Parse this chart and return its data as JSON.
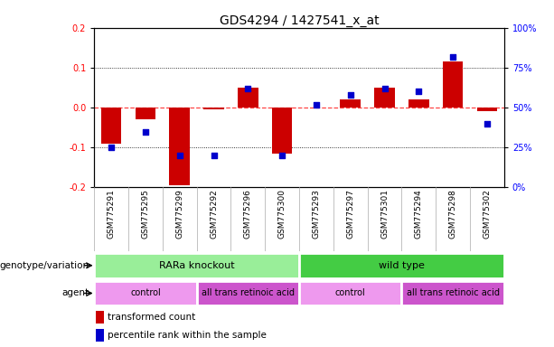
{
  "title": "GDS4294 / 1427541_x_at",
  "samples": [
    "GSM775291",
    "GSM775295",
    "GSM775299",
    "GSM775292",
    "GSM775296",
    "GSM775300",
    "GSM775293",
    "GSM775297",
    "GSM775301",
    "GSM775294",
    "GSM775298",
    "GSM775302"
  ],
  "bar_values": [
    -0.09,
    -0.03,
    -0.195,
    -0.005,
    0.05,
    -0.115,
    0.0,
    0.02,
    0.05,
    0.02,
    0.115,
    -0.01
  ],
  "dot_values": [
    25,
    35,
    20,
    20,
    62,
    20,
    52,
    58,
    62,
    60,
    82,
    40
  ],
  "ylim_left": [
    -0.2,
    0.2
  ],
  "ylim_right": [
    0,
    100
  ],
  "yticks_left": [
    -0.2,
    -0.1,
    0.0,
    0.1,
    0.2
  ],
  "yticks_right": [
    0,
    25,
    50,
    75,
    100
  ],
  "ytick_labels_right": [
    "0%",
    "25%",
    "50%",
    "75%",
    "100%"
  ],
  "bar_color": "#cc0000",
  "dot_color": "#0000cc",
  "zero_line_color": "#ff4444",
  "background_color": "#ffffff",
  "genotype_groups": [
    {
      "label": "RARa knockout",
      "start": 0,
      "end": 6,
      "color": "#99ee99"
    },
    {
      "label": "wild type",
      "start": 6,
      "end": 12,
      "color": "#44cc44"
    }
  ],
  "agent_groups": [
    {
      "label": "control",
      "start": 0,
      "end": 3,
      "color": "#ee99ee"
    },
    {
      "label": "all trans retinoic acid",
      "start": 3,
      "end": 6,
      "color": "#cc55cc"
    },
    {
      "label": "control",
      "start": 6,
      "end": 9,
      "color": "#ee99ee"
    },
    {
      "label": "all trans retinoic acid",
      "start": 9,
      "end": 12,
      "color": "#cc55cc"
    }
  ],
  "legend_items": [
    {
      "label": "transformed count",
      "color": "#cc0000"
    },
    {
      "label": "percentile rank within the sample",
      "color": "#0000cc"
    }
  ],
  "title_fontsize": 10
}
